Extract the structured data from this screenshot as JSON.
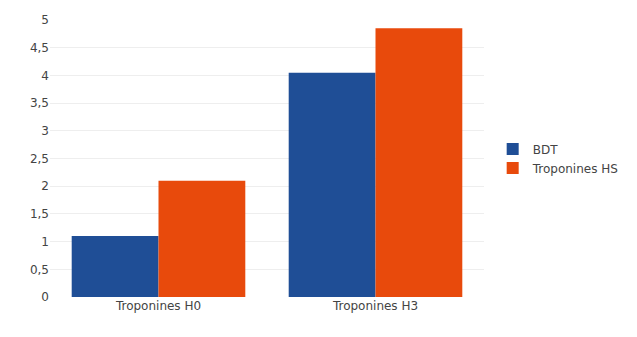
{
  "chart_data": {
    "type": "bar",
    "categories": [
      "Troponines H0",
      "Troponines H3"
    ],
    "series": [
      {
        "name": "BDT",
        "color": "#1F4E96",
        "values": [
          1.1,
          4.05
        ]
      },
      {
        "name": "Troponines HS",
        "color": "#E84A0C",
        "values": [
          2.1,
          4.85
        ]
      }
    ],
    "ylim": [
      0,
      5
    ],
    "yticks": [
      0,
      {
        "value": 0.5,
        "label": "0,5"
      },
      1,
      {
        "value": 1.5,
        "label": "1,5"
      },
      2,
      {
        "value": 2.5,
        "label": "2,5"
      },
      3,
      {
        "value": 3.5,
        "label": "3,5"
      },
      4,
      {
        "value": 4.5,
        "label": "4,5"
      },
      5
    ],
    "grid": true,
    "legend": "right"
  }
}
